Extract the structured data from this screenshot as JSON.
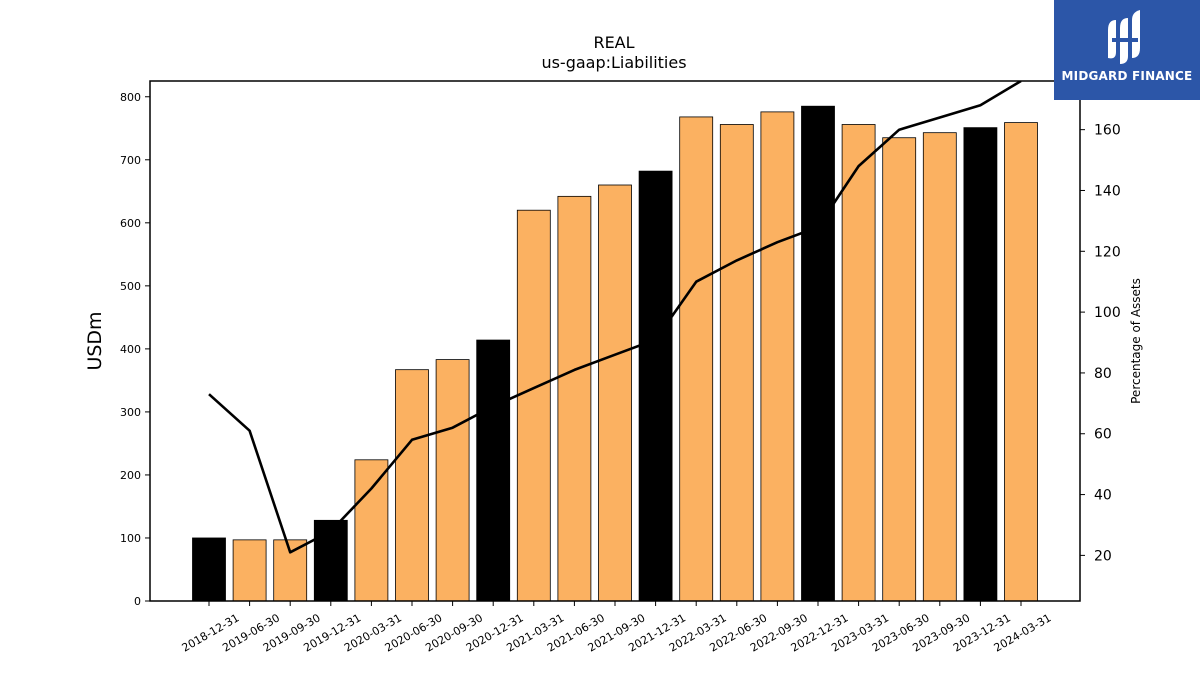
{
  "chart_data": {
    "type": "bar",
    "title": "REAL",
    "subtitle": "us-gaap:Liabilities",
    "ylabel": "USDm",
    "ylabel_right": "Percentage of Assets",
    "ylim": [
      0,
      825
    ],
    "ylim_right": [
      5,
      176
    ],
    "yticks": [
      0,
      100,
      200,
      300,
      400,
      500,
      600,
      700,
      800
    ],
    "yticks_right": [
      20,
      40,
      60,
      80,
      100,
      120,
      140,
      160
    ],
    "categories": [
      "2018-12-31",
      "2019-06-30",
      "2019-09-30",
      "2019-12-31",
      "2020-03-31",
      "2020-06-30",
      "2020-09-30",
      "2020-12-31",
      "2021-03-31",
      "2021-06-30",
      "2021-09-30",
      "2021-12-31",
      "2022-03-31",
      "2022-06-30",
      "2022-09-30",
      "2022-12-31",
      "2023-03-31",
      "2023-06-30",
      "2023-09-30",
      "2023-12-31",
      "2024-03-31"
    ],
    "series": [
      {
        "type": "bar",
        "axis": "left",
        "values": [
          100,
          97,
          97,
          128,
          224,
          367,
          383,
          414,
          620,
          642,
          660,
          682,
          768,
          756,
          776,
          785,
          756,
          735,
          743,
          751,
          759
        ],
        "colors": [
          "#000000",
          "#fbb161",
          "#fbb161",
          "#000000",
          "#fbb161",
          "#fbb161",
          "#fbb161",
          "#000000",
          "#fbb161",
          "#fbb161",
          "#fbb161",
          "#000000",
          "#fbb161",
          "#fbb161",
          "#fbb161",
          "#000000",
          "#fbb161",
          "#fbb161",
          "#fbb161",
          "#000000",
          "#fbb161"
        ]
      },
      {
        "type": "line",
        "axis": "right",
        "color": "#000000",
        "values": [
          73,
          61,
          21,
          28,
          42,
          58,
          62,
          69,
          75,
          81,
          86,
          91,
          110,
          117,
          123,
          128,
          148,
          160,
          164,
          168,
          176
        ]
      }
    ],
    "grid": false
  },
  "logo": {
    "name": "MIDGARD FINANCE",
    "icon": "midgard-logo-icon",
    "bg_color": "#2c56a8"
  }
}
